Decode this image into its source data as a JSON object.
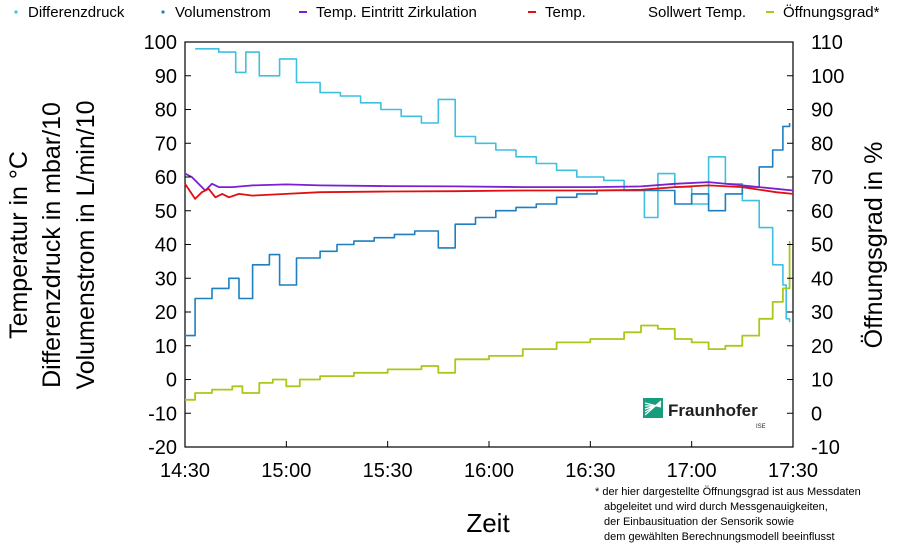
{
  "chart_data": {
    "type": "line",
    "xlabel": "Zeit",
    "ylabel_left": [
      "Temperatur in °C",
      "Differenzdruck in mbar/10",
      "Volumenstrom in L/min/10"
    ],
    "ylabel_right": "Öffnungsgrad in %",
    "x_ticks": [
      "14:30",
      "15:00",
      "15:30",
      "16:00",
      "16:30",
      "17:00",
      "17:30"
    ],
    "x_range_min": [
      0,
      180
    ],
    "ylim_left": [
      -20,
      100
    ],
    "ylim_right": [
      -10,
      110
    ],
    "y_ticks_left": [
      "100",
      "90",
      "80",
      "70",
      "60",
      "50",
      "40",
      "30",
      "20",
      "10",
      "0",
      "-10",
      "-20"
    ],
    "y_ticks_right": [
      "110",
      "100",
      "90",
      "80",
      "70",
      "60",
      "50",
      "40",
      "30",
      "20",
      "10",
      "0",
      "-10"
    ],
    "legend_position": "top",
    "series": [
      {
        "name": "Differenzdruck",
        "color": "#3ec0e0",
        "style": "dots",
        "points": [
          [
            3,
            98
          ],
          [
            10,
            97
          ],
          [
            15,
            91
          ],
          [
            18,
            97
          ],
          [
            22,
            90
          ],
          [
            28,
            95
          ],
          [
            33,
            88
          ],
          [
            40,
            85
          ],
          [
            46,
            84
          ],
          [
            52,
            82
          ],
          [
            58,
            80
          ],
          [
            64,
            78
          ],
          [
            70,
            76
          ],
          [
            75,
            83
          ],
          [
            80,
            72
          ],
          [
            86,
            70
          ],
          [
            92,
            68
          ],
          [
            98,
            66
          ],
          [
            104,
            64
          ],
          [
            110,
            62
          ],
          [
            116,
            60
          ],
          [
            124,
            59
          ],
          [
            130,
            56
          ],
          [
            136,
            48
          ],
          [
            140,
            61
          ],
          [
            145,
            57
          ],
          [
            150,
            52
          ],
          [
            155,
            66
          ],
          [
            160,
            58
          ],
          [
            165,
            53
          ],
          [
            170,
            45
          ],
          [
            174,
            34
          ],
          [
            177,
            28
          ],
          [
            178,
            18
          ],
          [
            179,
            17
          ]
        ]
      },
      {
        "name": "Volumenstrom",
        "color": "#1f7fc0",
        "style": "dots",
        "points": [
          [
            0,
            13
          ],
          [
            3,
            24
          ],
          [
            8,
            27
          ],
          [
            13,
            30
          ],
          [
            16,
            24
          ],
          [
            20,
            34
          ],
          [
            25,
            37
          ],
          [
            28,
            28
          ],
          [
            33,
            36
          ],
          [
            40,
            38
          ],
          [
            45,
            40
          ],
          [
            50,
            41
          ],
          [
            56,
            42
          ],
          [
            62,
            43
          ],
          [
            68,
            44
          ],
          [
            75,
            39
          ],
          [
            80,
            46
          ],
          [
            86,
            48
          ],
          [
            92,
            50
          ],
          [
            98,
            51
          ],
          [
            104,
            52
          ],
          [
            110,
            54
          ],
          [
            116,
            55
          ],
          [
            122,
            56
          ],
          [
            128,
            56
          ],
          [
            134,
            56
          ],
          [
            140,
            56
          ],
          [
            145,
            52
          ],
          [
            150,
            55
          ],
          [
            155,
            50
          ],
          [
            160,
            55
          ],
          [
            165,
            57
          ],
          [
            170,
            63
          ],
          [
            174,
            68
          ],
          [
            177,
            75
          ],
          [
            179,
            76
          ]
        ]
      },
      {
        "name": "Temp. Eintritt Zirkulation",
        "color": "#7b1fd0",
        "style": "line",
        "points": [
          [
            0,
            61
          ],
          [
            2,
            60
          ],
          [
            4,
            58
          ],
          [
            6,
            56
          ],
          [
            8,
            58
          ],
          [
            10,
            57
          ],
          [
            14,
            57
          ],
          [
            20,
            57.5
          ],
          [
            30,
            57.8
          ],
          [
            40,
            57.5
          ],
          [
            60,
            57.3
          ],
          [
            80,
            57.2
          ],
          [
            100,
            57
          ],
          [
            120,
            57
          ],
          [
            135,
            57.2
          ],
          [
            145,
            58
          ],
          [
            155,
            58.5
          ],
          [
            165,
            57.5
          ],
          [
            175,
            56.5
          ],
          [
            180,
            56
          ]
        ]
      },
      {
        "name": "Temp.",
        "color": "#e01010",
        "style": "line",
        "points": [
          [
            0,
            58
          ],
          [
            2,
            55
          ],
          [
            3,
            53.5
          ],
          [
            5,
            55.5
          ],
          [
            7,
            56.5
          ],
          [
            9,
            54
          ],
          [
            11,
            55
          ],
          [
            13,
            54
          ],
          [
            16,
            55
          ],
          [
            20,
            54.5
          ],
          [
            30,
            55
          ],
          [
            40,
            55.5
          ],
          [
            60,
            55.7
          ],
          [
            80,
            55.8
          ],
          [
            100,
            56
          ],
          [
            120,
            56
          ],
          [
            135,
            56.2
          ],
          [
            145,
            57
          ],
          [
            155,
            57.5
          ],
          [
            165,
            57
          ],
          [
            175,
            55.5
          ],
          [
            180,
            55
          ]
        ]
      },
      {
        "name": "Sollwert Temp.",
        "color": "#ffffff",
        "style": "none",
        "points": []
      },
      {
        "name": "Öffnungsgrad*",
        "color": "#a8c81a",
        "style": "line",
        "points": [
          [
            0,
            4
          ],
          [
            3,
            6
          ],
          [
            8,
            7
          ],
          [
            14,
            8
          ],
          [
            17,
            6
          ],
          [
            22,
            9
          ],
          [
            26,
            10
          ],
          [
            30,
            8
          ],
          [
            34,
            10
          ],
          [
            40,
            11
          ],
          [
            50,
            12
          ],
          [
            60,
            13
          ],
          [
            70,
            14
          ],
          [
            75,
            12
          ],
          [
            80,
            16
          ],
          [
            90,
            17
          ],
          [
            100,
            19
          ],
          [
            110,
            21
          ],
          [
            120,
            22
          ],
          [
            130,
            24
          ],
          [
            135,
            26
          ],
          [
            140,
            25
          ],
          [
            145,
            22
          ],
          [
            150,
            21
          ],
          [
            155,
            19
          ],
          [
            160,
            20
          ],
          [
            165,
            23
          ],
          [
            170,
            28
          ],
          [
            174,
            33
          ],
          [
            177,
            37
          ],
          [
            179,
            51
          ]
        ]
      }
    ]
  },
  "footnote": [
    "* der hier dargestellte Öffnungsgrad ist aus Messdaten",
    "abgeleitet und wird durch Messgenauigkeiten,",
    "der Einbausituation der Sensorik sowie",
    "dem gewählten Berechnungsmodell beeinflusst"
  ],
  "logo": {
    "name": "Fraunhofer",
    "sub": "ISE",
    "color": "#179c7d"
  }
}
